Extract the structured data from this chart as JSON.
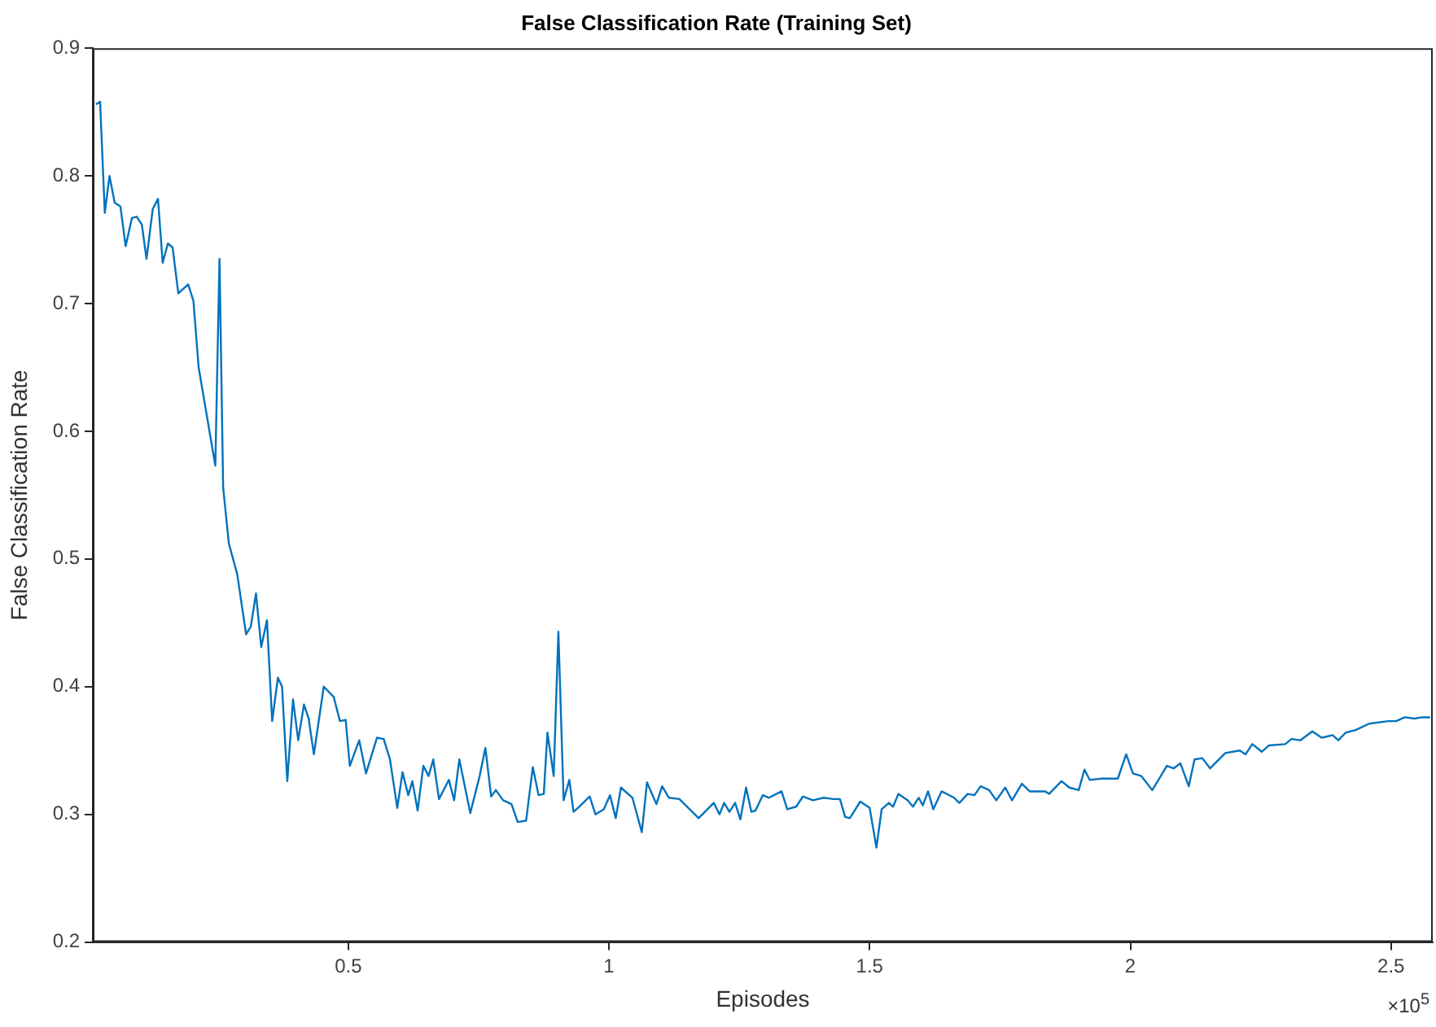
{
  "chart_data": {
    "type": "line",
    "title": "False Classification Rate (Training Set)",
    "xlabel": "Episodes",
    "ylabel": "False Classification Rate",
    "annotations": [
      "×10$^{5}$"
    ],
    "xlim": [
      0.01,
      2.58
    ],
    "xticks": [
      0.5,
      1,
      1.5,
      2,
      2.5
    ],
    "ylim": [
      0.2,
      0.9
    ],
    "yticks": [
      0.2,
      0.3,
      0.4,
      0.5,
      0.6,
      0.7,
      0.8,
      0.9
    ],
    "grid": false,
    "legend": false,
    "marker": "none",
    "line_style": "solid",
    "series": [
      {
        "color": "#0072bd",
        "x": [
          0.016,
          0.024,
          0.033,
          0.042,
          0.052,
          0.063,
          0.073,
          0.085,
          0.094,
          0.104,
          0.113,
          0.125,
          0.135,
          0.144,
          0.154,
          0.163,
          0.174,
          0.193,
          0.203,
          0.213,
          0.24,
          0.245,
          0.253,
          0.26,
          0.271,
          0.287,
          0.304,
          0.313,
          0.323,
          0.333,
          0.344,
          0.354,
          0.365,
          0.373,
          0.383,
          0.394,
          0.404,
          0.415,
          0.424,
          0.434,
          0.453,
          0.472,
          0.484,
          0.495,
          0.503,
          0.521,
          0.534,
          0.555,
          0.568,
          0.58,
          0.594,
          0.604,
          0.615,
          0.623,
          0.633,
          0.644,
          0.654,
          0.663,
          0.674,
          0.693,
          0.703,
          0.713,
          0.734,
          0.752,
          0.763,
          0.774,
          0.783,
          0.797,
          0.813,
          0.825,
          0.841,
          0.854,
          0.865,
          0.875,
          0.882,
          0.894,
          0.903,
          0.913,
          0.924,
          0.932,
          0.943,
          0.963,
          0.974,
          0.99,
          1.002,
          1.013,
          1.023,
          1.045,
          1.063,
          1.073,
          1.091,
          1.102,
          1.115,
          1.135,
          1.172,
          1.201,
          1.212,
          1.221,
          1.231,
          1.242,
          1.252,
          1.263,
          1.273,
          1.281,
          1.295,
          1.307,
          1.331,
          1.342,
          1.359,
          1.372,
          1.391,
          1.412,
          1.43,
          1.443,
          1.453,
          1.462,
          1.482,
          1.5,
          1.513,
          1.523,
          1.537,
          1.545,
          1.555,
          1.573,
          1.583,
          1.594,
          1.602,
          1.612,
          1.622,
          1.638,
          1.662,
          1.672,
          1.688,
          1.701,
          1.713,
          1.729,
          1.743,
          1.76,
          1.773,
          1.792,
          1.807,
          1.837,
          1.844,
          1.868,
          1.883,
          1.901,
          1.912,
          1.922,
          1.945,
          1.976,
          1.992,
          2.005,
          2.021,
          2.042,
          2.057,
          2.07,
          2.083,
          2.096,
          2.112,
          2.123,
          2.138,
          2.153,
          2.182,
          2.21,
          2.221,
          2.234,
          2.252,
          2.266,
          2.297,
          2.309,
          2.326,
          2.349,
          2.367,
          2.388,
          2.399,
          2.413,
          2.432,
          2.458,
          2.495,
          2.51,
          2.526,
          2.545,
          2.559,
          2.575
        ],
        "values": [
          0.856,
          0.858,
          0.771,
          0.8,
          0.779,
          0.776,
          0.745,
          0.767,
          0.768,
          0.762,
          0.735,
          0.774,
          0.782,
          0.732,
          0.747,
          0.744,
          0.708,
          0.715,
          0.702,
          0.65,
          0.585,
          0.573,
          0.735,
          0.556,
          0.512,
          0.488,
          0.441,
          0.447,
          0.473,
          0.431,
          0.452,
          0.373,
          0.407,
          0.4,
          0.326,
          0.39,
          0.358,
          0.386,
          0.375,
          0.347,
          0.4,
          0.392,
          0.373,
          0.374,
          0.338,
          0.358,
          0.332,
          0.36,
          0.359,
          0.343,
          0.305,
          0.333,
          0.315,
          0.326,
          0.303,
          0.338,
          0.33,
          0.343,
          0.312,
          0.327,
          0.311,
          0.343,
          0.301,
          0.33,
          0.352,
          0.314,
          0.319,
          0.311,
          0.308,
          0.294,
          0.295,
          0.337,
          0.315,
          0.316,
          0.364,
          0.33,
          0.443,
          0.311,
          0.327,
          0.302,
          0.306,
          0.314,
          0.3,
          0.304,
          0.315,
          0.297,
          0.321,
          0.313,
          0.286,
          0.325,
          0.308,
          0.322,
          0.313,
          0.312,
          0.297,
          0.309,
          0.3,
          0.309,
          0.302,
          0.309,
          0.296,
          0.321,
          0.302,
          0.303,
          0.315,
          0.313,
          0.318,
          0.304,
          0.306,
          0.314,
          0.311,
          0.313,
          0.312,
          0.312,
          0.298,
          0.297,
          0.31,
          0.305,
          0.274,
          0.304,
          0.309,
          0.306,
          0.316,
          0.311,
          0.306,
          0.313,
          0.307,
          0.318,
          0.304,
          0.318,
          0.313,
          0.309,
          0.316,
          0.315,
          0.322,
          0.319,
          0.311,
          0.321,
          0.311,
          0.324,
          0.318,
          0.318,
          0.316,
          0.326,
          0.321,
          0.319,
          0.335,
          0.327,
          0.328,
          0.328,
          0.347,
          0.332,
          0.33,
          0.319,
          0.329,
          0.338,
          0.336,
          0.34,
          0.322,
          0.343,
          0.344,
          0.336,
          0.348,
          0.35,
          0.347,
          0.355,
          0.349,
          0.354,
          0.355,
          0.359,
          0.358,
          0.365,
          0.36,
          0.362,
          0.358,
          0.364,
          0.366,
          0.371,
          0.373,
          0.373,
          0.376,
          0.375,
          0.376,
          0.376
        ]
      }
    ]
  }
}
